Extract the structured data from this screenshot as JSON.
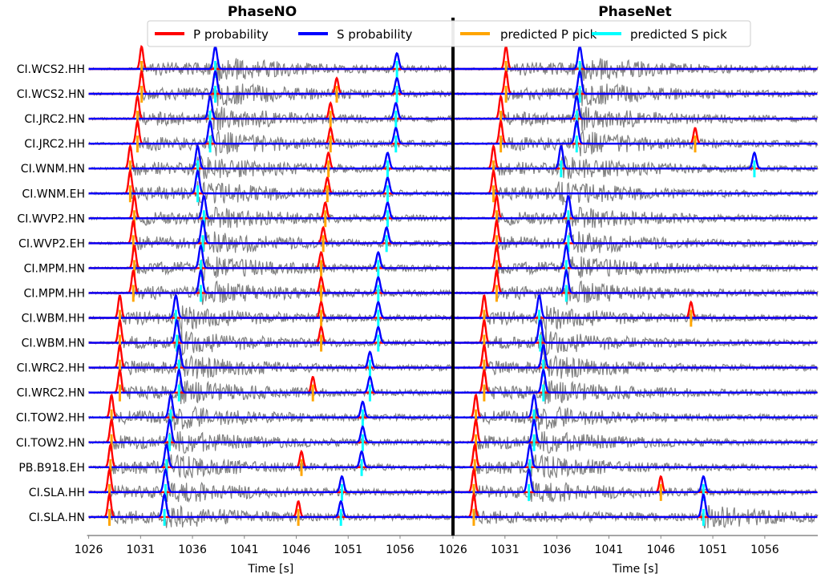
{
  "legend": {
    "placement": "top-center",
    "items": [
      {
        "label": "P probability",
        "color": "#ff0000",
        "kind": "line"
      },
      {
        "label": "S probability",
        "color": "#0000ff",
        "kind": "line"
      },
      {
        "label": "predicted P pick",
        "color": "#ffa500",
        "kind": "line"
      },
      {
        "label": "predicted S pick",
        "color": "#00ffff",
        "kind": "line"
      }
    ]
  },
  "colors": {
    "waveform": "#808080",
    "separator": "#000000",
    "axis": "#888888"
  },
  "chart_data": [
    {
      "type": "line",
      "title": "PhaseNO",
      "xlabel": "Time [s]",
      "xlim": [
        1026,
        1061.1
      ],
      "xticks": [
        1026,
        1031,
        1036,
        1041,
        1046,
        1051,
        1056
      ],
      "grid": false,
      "traces": [
        {
          "station": "CI.WCS2.HH",
          "p_picks": [
            1031.1
          ],
          "s_picks": [
            1038.2,
            1055.7
          ]
        },
        {
          "station": "CI.WCS2.HN",
          "p_picks": [
            1031.1,
            1049.9
          ],
          "s_picks": [
            1038.2,
            1055.7
          ]
        },
        {
          "station": "CI.JRC2.HN",
          "p_picks": [
            1030.7,
            1049.3
          ],
          "s_picks": [
            1037.7,
            1055.6
          ]
        },
        {
          "station": "CI.JRC2.HH",
          "p_picks": [
            1030.7,
            1049.3
          ],
          "s_picks": [
            1037.7,
            1055.6
          ]
        },
        {
          "station": "CI.WNM.HN",
          "p_picks": [
            1030.0,
            1049.1
          ],
          "s_picks": [
            1036.5,
            1054.8
          ]
        },
        {
          "station": "CI.WNM.EH",
          "p_picks": [
            1030.0,
            1049.0
          ],
          "s_picks": [
            1036.5,
            1054.8
          ]
        },
        {
          "station": "CI.WVP2.HN",
          "p_picks": [
            1030.4,
            1048.8
          ],
          "s_picks": [
            1037.1,
            1054.8
          ]
        },
        {
          "station": "CI.WVP2.EH",
          "p_picks": [
            1030.3,
            1048.6
          ],
          "s_picks": [
            1037.0,
            1054.7
          ]
        },
        {
          "station": "CI.MPM.HN",
          "p_picks": [
            1030.4,
            1048.4
          ],
          "s_picks": [
            1036.8,
            1053.9
          ]
        },
        {
          "station": "CI.MPM.HH",
          "p_picks": [
            1030.3,
            1048.4
          ],
          "s_picks": [
            1036.8,
            1053.9
          ]
        },
        {
          "station": "CI.WBM.HH",
          "p_picks": [
            1029.0,
            1048.4
          ],
          "s_picks": [
            1034.4,
            1053.9
          ]
        },
        {
          "station": "CI.WBM.HN",
          "p_picks": [
            1029.0,
            1048.4
          ],
          "s_picks": [
            1034.5,
            1053.9
          ]
        },
        {
          "station": "CI.WRC2.HH",
          "p_picks": [
            1029.0
          ],
          "s_picks": [
            1034.7,
            1053.1
          ]
        },
        {
          "station": "CI.WRC2.HN",
          "p_picks": [
            1029.0,
            1047.6
          ],
          "s_picks": [
            1034.7,
            1053.1
          ]
        },
        {
          "station": "CI.TOW2.HH",
          "p_picks": [
            1028.2
          ],
          "s_picks": [
            1033.9,
            1052.4
          ]
        },
        {
          "station": "CI.TOW2.HN",
          "p_picks": [
            1028.2
          ],
          "s_picks": [
            1033.8,
            1052.4
          ]
        },
        {
          "station": "PB.B918.EH",
          "p_picks": [
            1028.1,
            1046.5
          ],
          "s_picks": [
            1033.5,
            1052.3
          ]
        },
        {
          "station": "CI.SLA.HH",
          "p_picks": [
            1028.0
          ],
          "s_picks": [
            1033.4,
            1050.4
          ]
        },
        {
          "station": "CI.SLA.HN",
          "p_picks": [
            1028.0,
            1046.2
          ],
          "s_picks": [
            1033.3,
            1050.3
          ]
        }
      ]
    },
    {
      "type": "line",
      "title": "PhaseNet",
      "xlabel": "Time [s]",
      "xlim": [
        1026,
        1061.1
      ],
      "xticks": [
        1026,
        1031,
        1036,
        1041,
        1046,
        1051,
        1056
      ],
      "grid": false,
      "traces": [
        {
          "station": "CI.WCS2.HH",
          "p_picks": [
            1031.1
          ],
          "s_picks": [
            1038.2
          ]
        },
        {
          "station": "CI.WCS2.HN",
          "p_picks": [
            1031.1
          ],
          "s_picks": [
            1038.2
          ]
        },
        {
          "station": "CI.JRC2.HN",
          "p_picks": [
            1030.6
          ],
          "s_picks": [
            1037.9
          ]
        },
        {
          "station": "CI.JRC2.HH",
          "p_picks": [
            1030.6,
            1049.3
          ],
          "s_picks": [
            1037.9
          ]
        },
        {
          "station": "CI.WNM.HN",
          "p_picks": [
            1029.9
          ],
          "s_picks": [
            1036.4,
            1055.0
          ]
        },
        {
          "station": "CI.WNM.EH",
          "p_picks": [
            1029.9
          ],
          "s_picks": []
        },
        {
          "station": "CI.WVP2.HN",
          "p_picks": [
            1030.2
          ],
          "s_picks": [
            1037.1
          ]
        },
        {
          "station": "CI.WVP2.EH",
          "p_picks": [
            1030.2
          ],
          "s_picks": [
            1037.1
          ]
        },
        {
          "station": "CI.MPM.HN",
          "p_picks": [
            1030.2
          ],
          "s_picks": [
            1036.9
          ]
        },
        {
          "station": "CI.MPM.HH",
          "p_picks": [
            1030.2
          ],
          "s_picks": [
            1036.9
          ]
        },
        {
          "station": "CI.WBM.HH",
          "p_picks": [
            1029.0,
            1048.9
          ],
          "s_picks": [
            1034.3
          ]
        },
        {
          "station": "CI.WBM.HN",
          "p_picks": [
            1029.0
          ],
          "s_picks": [
            1034.4
          ]
        },
        {
          "station": "CI.WRC2.HH",
          "p_picks": [
            1029.0
          ],
          "s_picks": [
            1034.7
          ]
        },
        {
          "station": "CI.WRC2.HN",
          "p_picks": [
            1029.0
          ],
          "s_picks": [
            1034.7
          ]
        },
        {
          "station": "CI.TOW2.HH",
          "p_picks": [
            1028.2
          ],
          "s_picks": [
            1033.8
          ]
        },
        {
          "station": "CI.TOW2.HN",
          "p_picks": [
            1028.2
          ],
          "s_picks": [
            1033.8
          ]
        },
        {
          "station": "PB.B918.EH",
          "p_picks": [
            1028.1
          ],
          "s_picks": [
            1033.4
          ]
        },
        {
          "station": "CI.SLA.HH",
          "p_picks": [
            1028.0,
            1046.0
          ],
          "s_picks": [
            1033.3,
            1050.1
          ]
        },
        {
          "station": "CI.SLA.HN",
          "p_picks": [
            1028.0
          ],
          "s_picks": [
            1050.1
          ]
        }
      ]
    }
  ]
}
